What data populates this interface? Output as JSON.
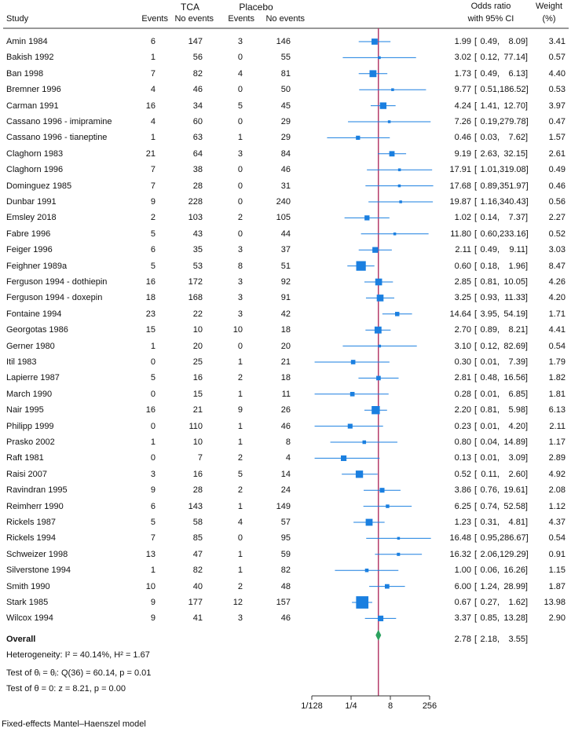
{
  "header": {
    "tca": "TCA",
    "placebo": "Placebo",
    "study": "Study",
    "events": "Events",
    "no_events": "No events",
    "odds_ratio_line1": "Odds ratio",
    "odds_ratio_line2": "with 95% CI",
    "weight_line1": "Weight",
    "weight_line2": "(%)"
  },
  "overall_label": "Overall",
  "stats": {
    "heterogeneity": "Heterogeneity: I² = 40.14%, H² = 1.67",
    "test_theta_equal": "Test of θᵢ = θⱼ: Q(36) = 60.14, p = 0.01",
    "test_theta_zero": "Test of θ = 0: z = 8.21, p = 0.00"
  },
  "footnote": "Fixed-effects Mantel–Haenszel model",
  "colors": {
    "marker": "#1a7fe0",
    "overall": "#2ca25f",
    "ref_line": "#b03060",
    "axis": "#333333"
  },
  "chart_data": {
    "type": "forest",
    "x_scale": "log2",
    "xlim": [
      0.0078125,
      256
    ],
    "xtick_labels": [
      "1/128",
      "1/4",
      "8",
      "256"
    ],
    "xtick_values": [
      0.0078125,
      0.25,
      8,
      256
    ],
    "reference_line": 2.78,
    "studies": [
      {
        "study": "Amin 1984",
        "tca_events": "6",
        "tca_no": "147",
        "pl_events": "3",
        "pl_no": "146",
        "or": 1.99,
        "lo": 0.49,
        "hi": 8.09,
        "or_txt": "1.99",
        "lo_txt": "0.49,",
        "hi_txt": "8.09]",
        "weight": 3.41,
        "weight_txt": "3.41"
      },
      {
        "study": "Bakish 1992",
        "tca_events": "1",
        "tca_no": "56",
        "pl_events": "0",
        "pl_no": "55",
        "or": 3.02,
        "lo": 0.12,
        "hi": 77.14,
        "or_txt": "3.02",
        "lo_txt": "0.12,",
        "hi_txt": "77.14]",
        "weight": 0.57,
        "weight_txt": "0.57"
      },
      {
        "study": "Ban 1998",
        "tca_events": "7",
        "tca_no": "82",
        "pl_events": "4",
        "pl_no": "81",
        "or": 1.73,
        "lo": 0.49,
        "hi": 6.13,
        "or_txt": "1.73",
        "lo_txt": "0.49,",
        "hi_txt": "6.13]",
        "weight": 4.4,
        "weight_txt": "4.40"
      },
      {
        "study": "Bremner 1996",
        "tca_events": "4",
        "tca_no": "46",
        "pl_events": "0",
        "pl_no": "50",
        "or": 9.77,
        "lo": 0.51,
        "hi": 186.52,
        "or_txt": "9.77",
        "lo_txt": "0.51,",
        "hi_txt": "186.52]",
        "weight": 0.53,
        "weight_txt": "0.53"
      },
      {
        "study": "Carman 1991",
        "tca_events": "16",
        "tca_no": "34",
        "pl_events": "5",
        "pl_no": "45",
        "or": 4.24,
        "lo": 1.41,
        "hi": 12.7,
        "or_txt": "4.24",
        "lo_txt": "1.41,",
        "hi_txt": "12.70]",
        "weight": 3.97,
        "weight_txt": "3.97"
      },
      {
        "study": "Cassano 1996 - imipramine",
        "tca_events": "4",
        "tca_no": "60",
        "pl_events": "0",
        "pl_no": "29",
        "or": 7.26,
        "lo": 0.19,
        "hi": 279.78,
        "or_txt": "7.26",
        "lo_txt": "0.19,",
        "hi_txt": "279.78]",
        "weight": 0.47,
        "weight_txt": "0.47"
      },
      {
        "study": "Cassano 1996 - tianeptine",
        "tca_events": "1",
        "tca_no": "63",
        "pl_events": "1",
        "pl_no": "29",
        "or": 0.46,
        "lo": 0.03,
        "hi": 7.62,
        "or_txt": "0.46",
        "lo_txt": "0.03,",
        "hi_txt": "7.62]",
        "weight": 1.57,
        "weight_txt": "1.57"
      },
      {
        "study": "Claghorn 1983",
        "tca_events": "21",
        "tca_no": "64",
        "pl_events": "3",
        "pl_no": "84",
        "or": 9.19,
        "lo": 2.63,
        "hi": 32.15,
        "or_txt": "9.19",
        "lo_txt": "2.63,",
        "hi_txt": "32.15]",
        "weight": 2.61,
        "weight_txt": "2.61"
      },
      {
        "study": "Claghorn 1996",
        "tca_events": "7",
        "tca_no": "38",
        "pl_events": "0",
        "pl_no": "46",
        "or": 17.91,
        "lo": 1.01,
        "hi": 319.08,
        "or_txt": "17.91",
        "lo_txt": "1.01,",
        "hi_txt": "319.08]",
        "weight": 0.49,
        "weight_txt": "0.49"
      },
      {
        "study": "Dominguez 1985",
        "tca_events": "7",
        "tca_no": "28",
        "pl_events": "0",
        "pl_no": "31",
        "or": 17.68,
        "lo": 0.89,
        "hi": 351.97,
        "or_txt": "17.68",
        "lo_txt": "0.89,",
        "hi_txt": "351.97]",
        "weight": 0.46,
        "weight_txt": "0.46"
      },
      {
        "study": "Dunbar 1991",
        "tca_events": "9",
        "tca_no": "228",
        "pl_events": "0",
        "pl_no": "240",
        "or": 19.87,
        "lo": 1.16,
        "hi": 340.43,
        "or_txt": "19.87",
        "lo_txt": "1.16,",
        "hi_txt": "340.43]",
        "weight": 0.56,
        "weight_txt": "0.56"
      },
      {
        "study": "Emsley 2018",
        "tca_events": "2",
        "tca_no": "103",
        "pl_events": "2",
        "pl_no": "105",
        "or": 1.02,
        "lo": 0.14,
        "hi": 7.37,
        "or_txt": "1.02",
        "lo_txt": "0.14,",
        "hi_txt": "7.37]",
        "weight": 2.27,
        "weight_txt": "2.27"
      },
      {
        "study": "Fabre 1996",
        "tca_events": "5",
        "tca_no": "43",
        "pl_events": "0",
        "pl_no": "44",
        "or": 11.8,
        "lo": 0.6,
        "hi": 233.16,
        "or_txt": "11.80",
        "lo_txt": "0.60,",
        "hi_txt": "233.16]",
        "weight": 0.52,
        "weight_txt": "0.52"
      },
      {
        "study": "Feiger 1996",
        "tca_events": "6",
        "tca_no": "35",
        "pl_events": "3",
        "pl_no": "37",
        "or": 2.11,
        "lo": 0.49,
        "hi": 9.11,
        "or_txt": "2.11",
        "lo_txt": "0.49,",
        "hi_txt": "9.11]",
        "weight": 3.03,
        "weight_txt": "3.03"
      },
      {
        "study": "Feighner 1989a",
        "tca_events": "5",
        "tca_no": "53",
        "pl_events": "8",
        "pl_no": "51",
        "or": 0.6,
        "lo": 0.18,
        "hi": 1.96,
        "or_txt": "0.60",
        "lo_txt": "0.18,",
        "hi_txt": "1.96]",
        "weight": 8.47,
        "weight_txt": "8.47"
      },
      {
        "study": "Ferguson 1994 - dothiepin",
        "tca_events": "16",
        "tca_no": "172",
        "pl_events": "3",
        "pl_no": "92",
        "or": 2.85,
        "lo": 0.81,
        "hi": 10.05,
        "or_txt": "2.85",
        "lo_txt": "0.81,",
        "hi_txt": "10.05]",
        "weight": 4.26,
        "weight_txt": "4.26"
      },
      {
        "study": "Ferguson 1994 - doxepin",
        "tca_events": "18",
        "tca_no": "168",
        "pl_events": "3",
        "pl_no": "91",
        "or": 3.25,
        "lo": 0.93,
        "hi": 11.33,
        "or_txt": "3.25",
        "lo_txt": "0.93,",
        "hi_txt": "11.33]",
        "weight": 4.2,
        "weight_txt": "4.20"
      },
      {
        "study": "Fontaine 1994",
        "tca_events": "23",
        "tca_no": "22",
        "pl_events": "3",
        "pl_no": "42",
        "or": 14.64,
        "lo": 3.95,
        "hi": 54.19,
        "or_txt": "14.64",
        "lo_txt": "3.95,",
        "hi_txt": "54.19]",
        "weight": 1.71,
        "weight_txt": "1.71"
      },
      {
        "study": "Georgotas 1986",
        "tca_events": "15",
        "tca_no": "10",
        "pl_events": "10",
        "pl_no": "18",
        "or": 2.7,
        "lo": 0.89,
        "hi": 8.21,
        "or_txt": "2.70",
        "lo_txt": "0.89,",
        "hi_txt": "8.21]",
        "weight": 4.41,
        "weight_txt": "4.41"
      },
      {
        "study": "Gerner 1980",
        "tca_events": "1",
        "tca_no": "20",
        "pl_events": "0",
        "pl_no": "20",
        "or": 3.1,
        "lo": 0.12,
        "hi": 82.69,
        "or_txt": "3.10",
        "lo_txt": "0.12,",
        "hi_txt": "82.69]",
        "weight": 0.54,
        "weight_txt": "0.54"
      },
      {
        "study": "Itil 1983",
        "tca_events": "0",
        "tca_no": "25",
        "pl_events": "1",
        "pl_no": "21",
        "or": 0.3,
        "lo": 0.01,
        "hi": 7.39,
        "or_txt": "0.30",
        "lo_txt": "0.01,",
        "hi_txt": "7.39]",
        "weight": 1.79,
        "weight_txt": "1.79"
      },
      {
        "study": "Lapierre 1987",
        "tca_events": "5",
        "tca_no": "16",
        "pl_events": "2",
        "pl_no": "18",
        "or": 2.81,
        "lo": 0.48,
        "hi": 16.56,
        "or_txt": "2.81",
        "lo_txt": "0.48,",
        "hi_txt": "16.56]",
        "weight": 1.82,
        "weight_txt": "1.82"
      },
      {
        "study": "March 1990",
        "tca_events": "0",
        "tca_no": "15",
        "pl_events": "1",
        "pl_no": "11",
        "or": 0.28,
        "lo": 0.01,
        "hi": 6.85,
        "or_txt": "0.28",
        "lo_txt": "0.01,",
        "hi_txt": "6.85]",
        "weight": 1.81,
        "weight_txt": "1.81"
      },
      {
        "study": "Nair 1995",
        "tca_events": "16",
        "tca_no": "21",
        "pl_events": "9",
        "pl_no": "26",
        "or": 2.2,
        "lo": 0.81,
        "hi": 5.98,
        "or_txt": "2.20",
        "lo_txt": "0.81,",
        "hi_txt": "5.98]",
        "weight": 6.13,
        "weight_txt": "6.13"
      },
      {
        "study": "Philipp 1999",
        "tca_events": "0",
        "tca_no": "110",
        "pl_events": "1",
        "pl_no": "46",
        "or": 0.23,
        "lo": 0.01,
        "hi": 4.2,
        "or_txt": "0.23",
        "lo_txt": "0.01,",
        "hi_txt": "4.20]",
        "weight": 2.11,
        "weight_txt": "2.11"
      },
      {
        "study": "Prasko 2002",
        "tca_events": "1",
        "tca_no": "10",
        "pl_events": "1",
        "pl_no": "8",
        "or": 0.8,
        "lo": 0.04,
        "hi": 14.89,
        "or_txt": "0.80",
        "lo_txt": "0.04,",
        "hi_txt": "14.89]",
        "weight": 1.17,
        "weight_txt": "1.17"
      },
      {
        "study": "Raft 1981",
        "tca_events": "0",
        "tca_no": "7",
        "pl_events": "2",
        "pl_no": "4",
        "or": 0.13,
        "lo": 0.01,
        "hi": 3.09,
        "or_txt": "0.13",
        "lo_txt": "0.01,",
        "hi_txt": "3.09]",
        "weight": 2.89,
        "weight_txt": "2.89"
      },
      {
        "study": "Raisi 2007",
        "tca_events": "3",
        "tca_no": "16",
        "pl_events": "5",
        "pl_no": "14",
        "or": 0.52,
        "lo": 0.11,
        "hi": 2.6,
        "or_txt": "0.52",
        "lo_txt": "0.11,",
        "hi_txt": "2.60]",
        "weight": 4.92,
        "weight_txt": "4.92"
      },
      {
        "study": "Ravindran 1995",
        "tca_events": "9",
        "tca_no": "28",
        "pl_events": "2",
        "pl_no": "24",
        "or": 3.86,
        "lo": 0.76,
        "hi": 19.61,
        "or_txt": "3.86",
        "lo_txt": "0.76,",
        "hi_txt": "19.61]",
        "weight": 2.08,
        "weight_txt": "2.08"
      },
      {
        "study": "Reimherr 1990",
        "tca_events": "6",
        "tca_no": "143",
        "pl_events": "1",
        "pl_no": "149",
        "or": 6.25,
        "lo": 0.74,
        "hi": 52.58,
        "or_txt": "6.25",
        "lo_txt": "0.74,",
        "hi_txt": "52.58]",
        "weight": 1.12,
        "weight_txt": "1.12"
      },
      {
        "study": "Rickels 1987",
        "tca_events": "5",
        "tca_no": "58",
        "pl_events": "4",
        "pl_no": "57",
        "or": 1.23,
        "lo": 0.31,
        "hi": 4.81,
        "or_txt": "1.23",
        "lo_txt": "0.31,",
        "hi_txt": "4.81]",
        "weight": 4.37,
        "weight_txt": "4.37"
      },
      {
        "study": "Rickels 1994",
        "tca_events": "7",
        "tca_no": "85",
        "pl_events": "0",
        "pl_no": "95",
        "or": 16.48,
        "lo": 0.95,
        "hi": 286.67,
        "or_txt": "16.48",
        "lo_txt": "0.95,",
        "hi_txt": "286.67]",
        "weight": 0.54,
        "weight_txt": "0.54"
      },
      {
        "study": "Schweizer 1998",
        "tca_events": "13",
        "tca_no": "47",
        "pl_events": "1",
        "pl_no": "59",
        "or": 16.32,
        "lo": 2.06,
        "hi": 129.29,
        "or_txt": "16.32",
        "lo_txt": "2.06,",
        "hi_txt": "129.29]",
        "weight": 0.91,
        "weight_txt": "0.91"
      },
      {
        "study": "Silverstone 1994",
        "tca_events": "1",
        "tca_no": "82",
        "pl_events": "1",
        "pl_no": "82",
        "or": 1.0,
        "lo": 0.06,
        "hi": 16.26,
        "or_txt": "1.00",
        "lo_txt": "0.06,",
        "hi_txt": "16.26]",
        "weight": 1.15,
        "weight_txt": "1.15"
      },
      {
        "study": "Smith 1990",
        "tca_events": "10",
        "tca_no": "40",
        "pl_events": "2",
        "pl_no": "48",
        "or": 6.0,
        "lo": 1.24,
        "hi": 28.99,
        "or_txt": "6.00",
        "lo_txt": "1.24,",
        "hi_txt": "28.99]",
        "weight": 1.87,
        "weight_txt": "1.87"
      },
      {
        "study": "Stark 1985",
        "tca_events": "9",
        "tca_no": "177",
        "pl_events": "12",
        "pl_no": "157",
        "or": 0.67,
        "lo": 0.27,
        "hi": 1.62,
        "or_txt": "0.67",
        "lo_txt": "0.27,",
        "hi_txt": "1.62]",
        "weight": 13.98,
        "weight_txt": "13.98"
      },
      {
        "study": "Wilcox 1994",
        "tca_events": "9",
        "tca_no": "41",
        "pl_events": "3",
        "pl_no": "46",
        "or": 3.37,
        "lo": 0.85,
        "hi": 13.28,
        "or_txt": "3.37",
        "lo_txt": "0.85,",
        "hi_txt": "13.28]",
        "weight": 2.9,
        "weight_txt": "2.90"
      }
    ],
    "overall": {
      "or": 2.78,
      "lo": 2.18,
      "hi": 3.55,
      "or_txt": "2.78",
      "lo_txt": "2.18,",
      "hi_txt": "3.55]"
    }
  }
}
